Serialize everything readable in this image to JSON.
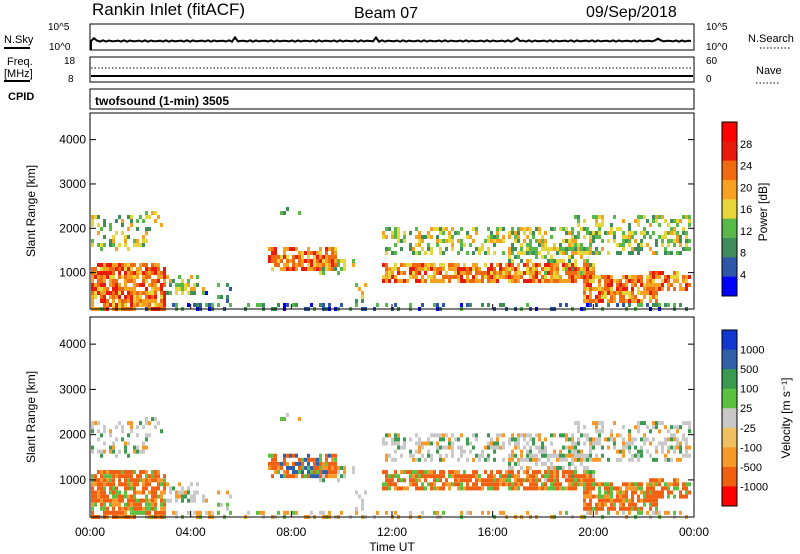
{
  "header": {
    "station": "Rankin Inlet (fitACF)",
    "beam": "Beam 07",
    "date": "09/Sep/2018"
  },
  "noise_panel": {
    "left_label": "N.Sky",
    "right_label": "N.Search",
    "left_ticks": [
      "10^5",
      "10^0"
    ],
    "right_ticks": [
      "10^5",
      "10^0"
    ]
  },
  "freq_panel": {
    "left_label_1": "Freq.",
    "left_label_2": "[MHz]",
    "right_label": "Nave",
    "left_ticks": [
      "18",
      "8"
    ],
    "right_ticks": [
      "60",
      "0"
    ]
  },
  "cpid": {
    "label": "CPID",
    "program": "twofsound (1-min) 3505"
  },
  "colors": {
    "power": [
      "#0000ff",
      "#2f56a8",
      "#3e8d5a",
      "#58b84a",
      "#e6d63a",
      "#f8a020",
      "#f06a10",
      "#e81a0a",
      "#ff0000"
    ],
    "velocity": [
      "#ff0000",
      "#f06010",
      "#f89a2a",
      "#f0c060",
      "#c8c8c8",
      "#5cc040",
      "#3a9a50",
      "#3060a8",
      "#1038d0"
    ]
  },
  "chart_data": [
    {
      "type": "heatmap",
      "name": "Power",
      "ylabel": "Slant Range [km]",
      "yticks": [
        1000,
        2000,
        3000,
        4000
      ],
      "ylim": [
        180,
        4600
      ],
      "xlim_hours": [
        0,
        24
      ],
      "colorbar": {
        "label": "Power [dB]",
        "ticks": [
          4,
          8,
          12,
          16,
          20,
          24,
          28
        ],
        "range": [
          0,
          32
        ]
      }
    },
    {
      "type": "heatmap",
      "name": "Velocity",
      "ylabel": "Slant Range [km]",
      "xlabel": "Time UT",
      "xticks": [
        "00:00",
        "04:00",
        "08:00",
        "12:00",
        "16:00",
        "20:00",
        "00:00"
      ],
      "yticks": [
        1000,
        2000,
        3000,
        4000
      ],
      "ylim": [
        180,
        4600
      ],
      "xlim_hours": [
        0,
        24
      ],
      "colorbar": {
        "label": "Velocity [m s⁻¹]",
        "ticks": [
          "1000",
          "500",
          "100",
          "25",
          "-25",
          "-100",
          "-500",
          "-1000"
        ]
      }
    }
  ]
}
